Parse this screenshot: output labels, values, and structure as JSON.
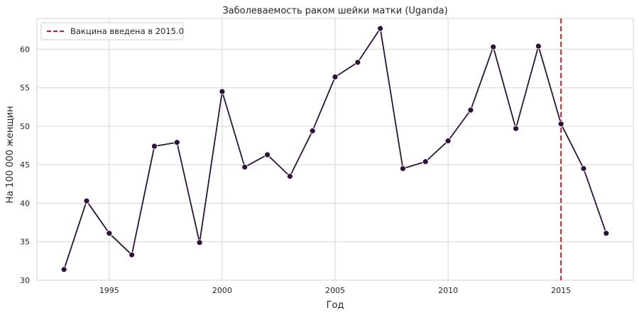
{
  "chart_data": {
    "type": "line",
    "title": "Заболеваемость раком шейки матки (Uganda)",
    "xlabel": "Год",
    "ylabel": "На 100 000 женщин",
    "xlim": [
      1991.8,
      2018.2
    ],
    "ylim": [
      30,
      64
    ],
    "x_ticks": [
      1995,
      2000,
      2005,
      2010,
      2015
    ],
    "y_ticks": [
      30,
      35,
      40,
      45,
      50,
      55,
      60
    ],
    "grid": true,
    "legend_position": "top-left",
    "series": [
      {
        "color": "#2d1339",
        "marker": "circle",
        "x": [
          1993,
          1994,
          1995,
          1996,
          1997,
          1998,
          1999,
          2000,
          2001,
          2002,
          2003,
          2004,
          2005,
          2006,
          2007,
          2008,
          2009,
          2010,
          2011,
          2012,
          2013,
          2014,
          2015,
          2016,
          2017
        ],
        "values": [
          31.4,
          40.3,
          36.1,
          33.3,
          47.4,
          47.9,
          34.9,
          54.5,
          44.7,
          46.3,
          43.5,
          49.4,
          56.4,
          58.3,
          62.7,
          44.5,
          45.4,
          48.1,
          52.1,
          60.3,
          49.7,
          60.4,
          50.3,
          44.5,
          36.1
        ]
      }
    ],
    "annotations": [
      {
        "type": "vline",
        "x": 2015,
        "color": "#c0201f",
        "style": "dashed",
        "label": "Вакцина введена в 2015.0"
      }
    ]
  }
}
